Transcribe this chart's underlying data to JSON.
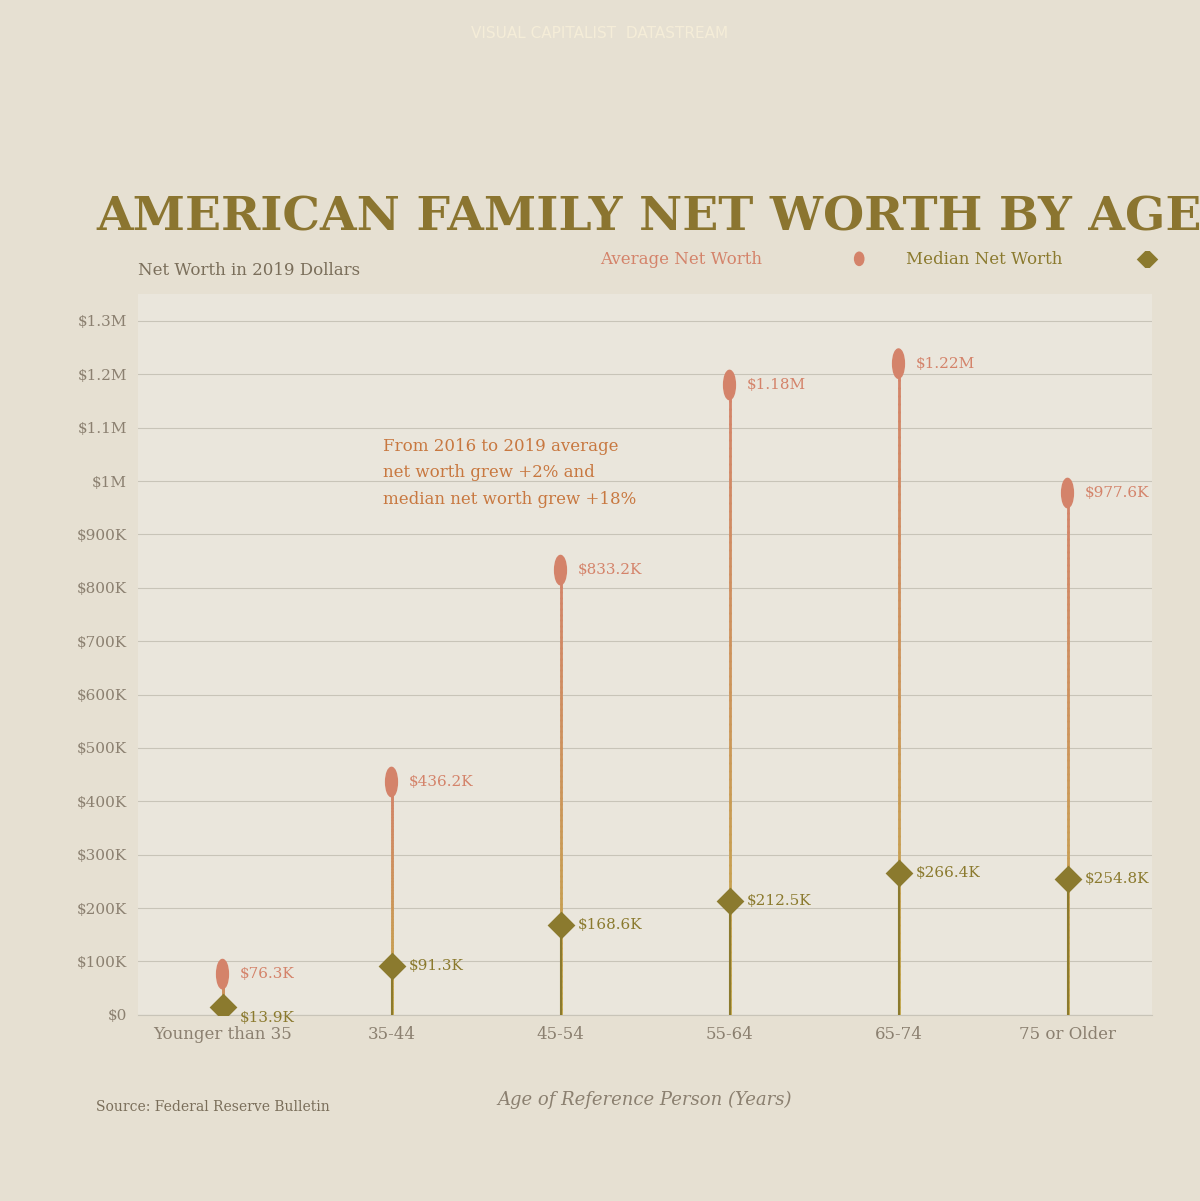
{
  "title": "AMERICAN FAMILY NET WORTH BY AGE",
  "subtitle": "Net Worth in 2019 Dollars",
  "source": "Source: Federal Reserve Bulletin",
  "header_text": "VISUAL CAPITALIST  DATASTREAM",
  "annotation": "From 2016 to 2019 average\nnet worth grew +2% and\nmedian net worth grew +18%",
  "xlabel": "Age of Reference Person (Years)",
  "categories": [
    "Younger than 35",
    "35-44",
    "45-54",
    "55-64",
    "65-74",
    "75 or Older"
  ],
  "average_values": [
    76300,
    436200,
    833200,
    1180000,
    1220000,
    977600
  ],
  "median_values": [
    13900,
    91300,
    168600,
    212500,
    266400,
    254800
  ],
  "average_labels": [
    "$76.3K",
    "$436.2K",
    "$833.2K",
    "$1.18M",
    "$1.22M",
    "$977.6K"
  ],
  "median_labels": [
    "$13.9K",
    "$91.3K",
    "$168.6K",
    "$212.5K",
    "$266.4K",
    "$254.8K"
  ],
  "bg_color": "#e6e0d2",
  "plot_bg_color": "#eae6dc",
  "average_color": "#d4836a",
  "median_color": "#8b7a2e",
  "line_color_bottom": "#c4a84a",
  "line_color_top": "#d4836a",
  "title_color": "#8b7530",
  "subtitle_color": "#7a6e5a",
  "annotation_color": "#c87840",
  "axis_color": "#8b8070",
  "grid_color": "#c8c4b8",
  "header_bg": "#d4bc78",
  "header_text_color": "#f5edd8",
  "ylim": [
    0,
    1350000
  ],
  "yticks": [
    0,
    100000,
    200000,
    300000,
    400000,
    500000,
    600000,
    700000,
    800000,
    900000,
    1000000,
    1100000,
    1200000,
    1300000
  ],
  "ytick_labels": [
    "$0",
    "$100K",
    "$200K",
    "$300K",
    "$400K",
    "$500K",
    "$600K",
    "$700K",
    "$800K",
    "$900K",
    "$1M",
    "$1.1M",
    "$1.2M",
    "$1.3M"
  ]
}
